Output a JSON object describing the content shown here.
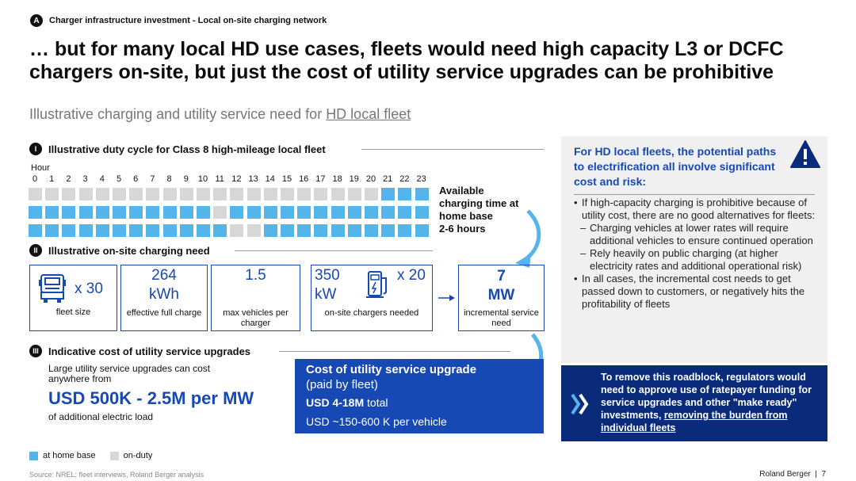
{
  "header": {
    "badge": "A",
    "section": "Charger infrastructure investment - Local on-site charging network",
    "headline": "… but for many local HD use cases, fleets would need high capacity L3 or DCFC chargers on-site, but just the cost of utility service upgrades can be prohibitive",
    "subtitle_prefix": "Illustrative charging and utility service need for ",
    "subtitle_link": "HD local fleet"
  },
  "duty_cycle": {
    "numeral": "I",
    "title": "Illustrative duty cycle for Class 8 high-mileage local fleet",
    "hour_label": "Hour",
    "hours": [
      "0",
      "1",
      "2",
      "3",
      "4",
      "5",
      "6",
      "7",
      "8",
      "9",
      "10",
      "11",
      "12",
      "13",
      "14",
      "15",
      "16",
      "17",
      "18",
      "19",
      "20",
      "21",
      "22",
      "23"
    ],
    "rows": [
      [
        0,
        0,
        0,
        0,
        0,
        0,
        0,
        0,
        0,
        0,
        0,
        0,
        0,
        0,
        0,
        0,
        0,
        0,
        0,
        0,
        0,
        1,
        1,
        1
      ],
      [
        1,
        1,
        1,
        1,
        1,
        1,
        1,
        1,
        1,
        1,
        1,
        0,
        1,
        1,
        1,
        1,
        1,
        1,
        1,
        1,
        1,
        1,
        1,
        1
      ],
      [
        1,
        1,
        1,
        1,
        1,
        1,
        1,
        1,
        1,
        1,
        1,
        1,
        0,
        0,
        1,
        1,
        1,
        1,
        1,
        1,
        1,
        1,
        1,
        1
      ]
    ],
    "home_color": "#55b4ea",
    "duty_color": "#d7d7d7",
    "available_label": "Available charging time at home base",
    "available_value": "2-6 hours"
  },
  "charging": {
    "numeral": "II",
    "title": "Illustrative on-site charging need",
    "fleet_mult": "x 30",
    "fleet_label": "fleet size",
    "kwh_value": "264",
    "kwh_unit": "kWh",
    "kwh_label": "effective full charge",
    "ratio_value": "1.5",
    "ratio_label": "max vehicles per charger",
    "chargers_kw": "350",
    "chargers_unit": "kW",
    "chargers_mult": "x 20",
    "chargers_label": "on-site chargers needed",
    "mw_value": "7",
    "mw_unit": "MW",
    "mw_label": "incremental service need"
  },
  "cost": {
    "numeral": "III",
    "title": "Indicative cost of utility service upgrades",
    "lead": "Large utility service upgrades can cost anywhere from",
    "big": "USD 500K - 2.5M per MW",
    "sub": "of additional electric load",
    "box_title": "Cost of utility service upgrade",
    "box_sub": "(paid by fleet)",
    "box_total_bold": "USD 4-18M",
    "box_total_rest": " total",
    "box_per_vehicle": "USD ~150-600 K per vehicle"
  },
  "panel": {
    "title": "For HD local fleets, the potential paths to electrification all involve significant cost and risk:",
    "bullet1": "If high-capacity charging is prohibitive because of utility cost, there are no good alternatives for fleets:",
    "dash1": "Charging vehicles at lower rates will require additional vehicles to ensure continued operation",
    "dash2": "Rely heavily on public charging (at higher electricity rates and additional operational risk)",
    "bullet2": "In all cases, the incremental cost needs to get passed down to customers, or negatively hits the profitability of fleets",
    "warning_icon": "warning-triangle-icon"
  },
  "callout": {
    "text": "To remove this roadblock, regulators would need to approve use of ratepayer funding for service upgrades and other \"make ready\" investments, ",
    "link": "removing the burden from individual fleets",
    "icon": "double-chevron-icon"
  },
  "legend": {
    "home": "at home base",
    "duty": "on-duty"
  },
  "footer": {
    "source": "Source: NREL; fleet interviews, Roland Berger analysis",
    "brand": "Roland Berger",
    "page": "7"
  }
}
